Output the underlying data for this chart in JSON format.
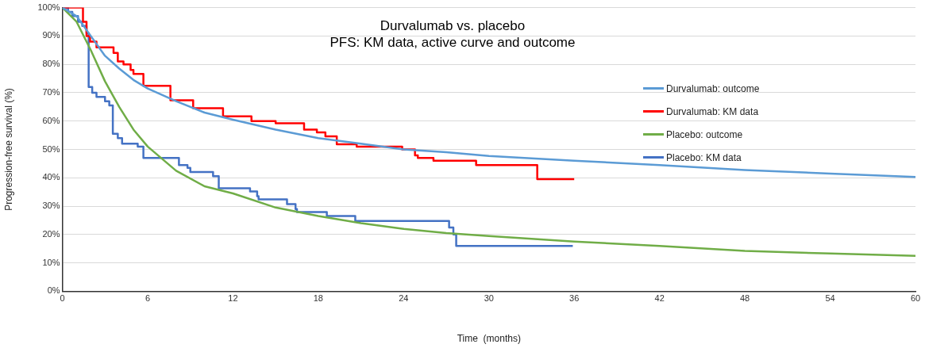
{
  "chart_data": {
    "type": "line",
    "title": "Durvalumab vs. placebo\nPFS: KM data, active curve and outcome",
    "xlabel": "Time  (months)",
    "ylabel": "Progression-free survival (%)",
    "xlim": [
      0,
      60
    ],
    "xticks": [
      0,
      6,
      12,
      18,
      24,
      30,
      36,
      42,
      48,
      54,
      60
    ],
    "ylim": [
      0,
      100
    ],
    "yticks": [
      {
        "value": 0,
        "label": "0%"
      },
      {
        "value": 10,
        "label": "10%"
      },
      {
        "value": 20,
        "label": "20%"
      },
      {
        "value": 30,
        "label": "30%"
      },
      {
        "value": 40,
        "label": "40%"
      },
      {
        "value": 50,
        "label": "50%"
      },
      {
        "value": 60,
        "label": "60%"
      },
      {
        "value": 70,
        "label": "70%"
      },
      {
        "value": 80,
        "label": "80%"
      },
      {
        "value": 90,
        "label": "90%"
      },
      {
        "value": 100,
        "label": "100%"
      }
    ],
    "grid": "y",
    "legend": "right",
    "marker": "none",
    "series": [
      {
        "name": "Durvalumab: outcome",
        "type": "line",
        "color": "#5b9bd5",
        "x": [
          0,
          1,
          2,
          3,
          4,
          5,
          6,
          8,
          10,
          12,
          15,
          18,
          21,
          24,
          27,
          30,
          36,
          42,
          48,
          54,
          60
        ],
        "values": [
          100,
          97,
          90,
          83,
          78.5,
          74.5,
          71.5,
          67,
          63,
          60.5,
          57,
          54,
          52,
          50,
          49,
          47.7,
          46,
          44.5,
          42.7,
          41.5,
          40.3
        ]
      },
      {
        "name": "Durvalumab: KM data",
        "type": "step",
        "color": "#ff0000",
        "x": [
          0,
          1.45,
          1.7,
          1.95,
          2.4,
          3.6,
          3.9,
          4.3,
          4.8,
          5,
          5.7,
          7.6,
          9.2,
          11.3,
          13.3,
          15,
          17,
          17.9,
          18.5,
          19.3,
          20.7,
          23.9,
          24.8,
          25,
          26.1,
          29.1,
          33.4,
          36
        ],
        "values": [
          100,
          95,
          90,
          88,
          86,
          84,
          81,
          80,
          78,
          76.6,
          72.4,
          67.3,
          64.5,
          61.7,
          60,
          59.2,
          57,
          56,
          54.6,
          51.8,
          51,
          50,
          47.9,
          47,
          46,
          44.5,
          39.5,
          39.5
        ]
      },
      {
        "name": "Placebo: outcome",
        "type": "line",
        "color": "#70ad47",
        "x": [
          0,
          1,
          2,
          3,
          4,
          5,
          6,
          8,
          10,
          12,
          15,
          18,
          21,
          24,
          27,
          30,
          36,
          42,
          48,
          54,
          60
        ],
        "values": [
          100,
          95,
          85,
          74,
          65,
          57,
          51,
          42.5,
          37,
          34.5,
          29.5,
          26.5,
          24,
          22,
          20.5,
          19.5,
          17.5,
          16,
          14.2,
          13.3,
          12.5
        ]
      },
      {
        "name": "Placebo: KM data",
        "type": "step",
        "color": "#4472c4",
        "x": [
          0,
          0.4,
          0.7,
          1.1,
          1.4,
          1.7,
          1.85,
          2.1,
          2.4,
          3,
          3.3,
          3.55,
          3.9,
          4.2,
          5.3,
          5.7,
          8.2,
          8.8,
          9,
          10.6,
          11,
          13.2,
          13.7,
          13.8,
          15.8,
          16.4,
          16.5,
          18.6,
          20.6,
          27.2,
          27.5,
          27.7,
          35.9
        ],
        "values": [
          100,
          98.5,
          97,
          95,
          93.5,
          91,
          72,
          70,
          68.5,
          67,
          65.5,
          55.5,
          54,
          52,
          51,
          47,
          44.5,
          43.5,
          42,
          40.6,
          36.3,
          35.2,
          33.5,
          32.4,
          30.7,
          29,
          27.9,
          26.5,
          24.8,
          22.5,
          20,
          16,
          16
        ]
      }
    ]
  }
}
